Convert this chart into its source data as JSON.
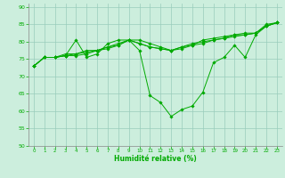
{
  "xlabel": "Humidité relative (%)",
  "bg_color": "#cceedd",
  "grid_color": "#99ccbb",
  "line_color": "#00aa00",
  "xlim": [
    -0.5,
    23.5
  ],
  "ylim": [
    50,
    91
  ],
  "yticks": [
    50,
    55,
    60,
    65,
    70,
    75,
    80,
    85,
    90
  ],
  "xticks": [
    0,
    1,
    2,
    3,
    4,
    5,
    6,
    7,
    8,
    9,
    10,
    11,
    12,
    13,
    14,
    15,
    16,
    17,
    18,
    19,
    20,
    21,
    22,
    23
  ],
  "lines": [
    [
      73,
      75.5,
      75.5,
      76.0,
      80.5,
      75.5,
      76.5,
      79.5,
      80.5,
      80.5,
      77.5,
      64.5,
      62.5,
      58.5,
      60.5,
      61.5,
      65.5,
      74.0,
      75.5,
      79.0,
      75.5,
      82.0,
      84.5,
      85.5
    ],
    [
      73,
      75.5,
      75.5,
      76.0,
      76.0,
      76.5,
      77.5,
      78.5,
      79.5,
      80.5,
      79.5,
      78.5,
      78.0,
      77.5,
      78.5,
      79.0,
      79.5,
      80.5,
      81.0,
      81.5,
      82.0,
      82.5,
      84.5,
      85.5
    ],
    [
      73,
      75.5,
      75.5,
      76.0,
      76.5,
      77.0,
      77.5,
      78.0,
      79.0,
      80.5,
      79.5,
      78.5,
      78.0,
      77.5,
      78.5,
      79.5,
      80.0,
      80.5,
      81.0,
      82.0,
      82.0,
      82.5,
      84.5,
      85.5
    ],
    [
      73,
      75.5,
      75.5,
      76.5,
      76.5,
      77.5,
      77.5,
      78.5,
      79.0,
      80.5,
      80.5,
      79.5,
      78.5,
      77.5,
      78.0,
      79.0,
      80.5,
      81.0,
      81.5,
      82.0,
      82.5,
      82.5,
      85.0,
      85.5
    ]
  ]
}
